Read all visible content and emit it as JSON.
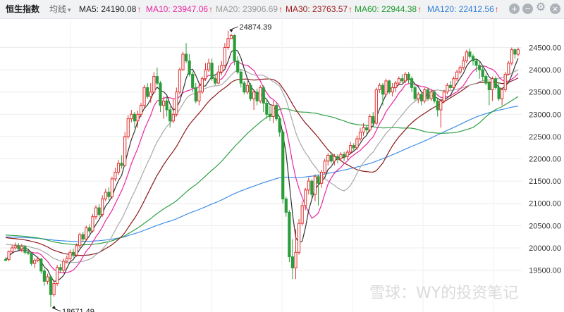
{
  "header": {
    "title": "恒生指数",
    "mode": "均线",
    "ma": [
      {
        "label": "MA5: 24190.08",
        "color": "#222222",
        "line": "#333333"
      },
      {
        "label": "MA10: 23947.06",
        "color": "#e8259e",
        "line": "#e8259e"
      },
      {
        "label": "MA20: 23906.69",
        "color": "#9a9a9a",
        "line": "#a8a8a8"
      },
      {
        "label": "MA30: 23763.57",
        "color": "#9b1b1b",
        "line": "#8b1a1a"
      },
      {
        "label": "MA60: 22944.38",
        "color": "#1f9a2d",
        "line": "#2ea043"
      },
      {
        "label": "MA120: 22412.56",
        "color": "#2f7fd6",
        "line": "#3f8ee6"
      }
    ],
    "arrow": "↑",
    "arrow_color": "#e03030"
  },
  "ma250_color": "#f0a81c",
  "watermark": "雪球：WY的投资笔记",
  "chart_data": {
    "type": "candlestick",
    "y_ticks": [
      19500,
      20000,
      20500,
      21000,
      21500,
      22000,
      22500,
      23000,
      23500,
      24000,
      24500
    ],
    "y_tick_labels": [
      "19500.00",
      "20000.00",
      "20500.00",
      "21000.00",
      "21500.00",
      "22000.00",
      "22500.00",
      "23000.00",
      "23500.00",
      "24000.00",
      "24500.00"
    ],
    "ylim": [
      18560,
      25140
    ],
    "grid": true,
    "up_color": "#e03030",
    "down_color": "#2a9d3a",
    "max_label": "24874.39",
    "min_label": "18671.49",
    "candles": [
      [
        19740,
        19720,
        19790,
        19700
      ],
      [
        19740,
        19920,
        19940,
        19700
      ],
      [
        19920,
        20000,
        20070,
        19880
      ],
      [
        20000,
        20050,
        20120,
        19960
      ],
      [
        20050,
        19980,
        20110,
        19920
      ],
      [
        19980,
        20030,
        20090,
        19900
      ],
      [
        20030,
        19900,
        20060,
        19850
      ],
      [
        19900,
        19880,
        19950,
        19840
      ],
      [
        19880,
        19650,
        19900,
        19600
      ],
      [
        19650,
        19720,
        19770,
        19550
      ],
      [
        19720,
        19750,
        19800,
        19680
      ],
      [
        19750,
        19480,
        19770,
        19420
      ],
      [
        19480,
        19250,
        19530,
        19150
      ],
      [
        19250,
        19350,
        19420,
        19180
      ],
      [
        19350,
        18950,
        19380,
        18671.49
      ],
      [
        18950,
        19200,
        19280,
        18900
      ],
      [
        19200,
        19560,
        19620,
        19150
      ],
      [
        19560,
        19500,
        19640,
        19440
      ],
      [
        19500,
        19700,
        19760,
        19450
      ],
      [
        19700,
        19760,
        19830,
        19650
      ],
      [
        19760,
        19900,
        19960,
        19720
      ],
      [
        19900,
        19840,
        19980,
        19780
      ],
      [
        19840,
        20050,
        20100,
        19800
      ],
      [
        20050,
        20300,
        20340,
        20000
      ],
      [
        20300,
        20200,
        20360,
        20130
      ],
      [
        20200,
        20450,
        20500,
        20150
      ],
      [
        20450,
        20380,
        20530,
        20320
      ],
      [
        20380,
        20700,
        20760,
        20340
      ],
      [
        20700,
        20900,
        20960,
        20640
      ],
      [
        20900,
        20750,
        20980,
        20700
      ],
      [
        20750,
        21100,
        21180,
        20700
      ],
      [
        21100,
        21250,
        21330,
        21050
      ],
      [
        21250,
        21150,
        21360,
        21080
      ],
      [
        21150,
        21550,
        21600,
        21100
      ],
      [
        21550,
        21700,
        21800,
        21500
      ],
      [
        21700,
        21900,
        21980,
        21640
      ],
      [
        21900,
        21850,
        22080,
        21780
      ],
      [
        21850,
        22500,
        22600,
        21830
      ],
      [
        22500,
        22900,
        22980,
        22450
      ],
      [
        22900,
        23000,
        23100,
        22820
      ],
      [
        23000,
        22850,
        23050,
        22700
      ],
      [
        22850,
        23000,
        23080,
        22700
      ],
      [
        23000,
        23200,
        23260,
        22940
      ],
      [
        23200,
        23600,
        23660,
        23150
      ],
      [
        23600,
        23400,
        23700,
        23350
      ],
      [
        23400,
        23500,
        23700,
        23260
      ],
      [
        23500,
        23850,
        23950,
        23460
      ],
      [
        23850,
        23700,
        24050,
        23650
      ],
      [
        23700,
        23200,
        23750,
        23050
      ],
      [
        23200,
        23300,
        23400,
        22900
      ],
      [
        23300,
        23100,
        23400,
        22950
      ],
      [
        23100,
        22850,
        23180,
        22700
      ],
      [
        22850,
        23000,
        23350,
        22800
      ],
      [
        23000,
        23500,
        23600,
        22950
      ],
      [
        23500,
        24000,
        24050,
        23450
      ],
      [
        24000,
        24350,
        24400,
        23980
      ],
      [
        24350,
        24200,
        24600,
        24150
      ],
      [
        24200,
        23900,
        24350,
        23850
      ],
      [
        23900,
        23600,
        23960,
        23500
      ],
      [
        23600,
        23300,
        23700,
        23250
      ],
      [
        23300,
        23500,
        23700,
        23200
      ],
      [
        23500,
        23800,
        23850,
        23460
      ],
      [
        23800,
        24000,
        24150,
        23750
      ],
      [
        24000,
        24150,
        24250,
        23950
      ],
      [
        24150,
        23800,
        24250,
        23750
      ],
      [
        23800,
        23700,
        23900,
        23650
      ],
      [
        23700,
        23950,
        24100,
        23680
      ],
      [
        23950,
        24100,
        24200,
        23880
      ],
      [
        24100,
        24500,
        24600,
        24050
      ],
      [
        24500,
        24700,
        24874.39,
        24450
      ],
      [
        24700,
        24770,
        24810,
        24720
      ],
      [
        24770,
        24200,
        24800,
        24100
      ],
      [
        24200,
        23950,
        24300,
        23900
      ],
      [
        23950,
        23700,
        24000,
        23600
      ],
      [
        23700,
        23500,
        23750,
        23450
      ],
      [
        23500,
        23650,
        23750,
        23450
      ],
      [
        23650,
        23350,
        23700,
        23300
      ],
      [
        23350,
        23500,
        23550,
        23100
      ],
      [
        23500,
        23300,
        23580,
        23200
      ],
      [
        23300,
        23600,
        23650,
        23250
      ],
      [
        23600,
        23250,
        23650,
        23050
      ],
      [
        23250,
        23000,
        23350,
        22900
      ],
      [
        23000,
        22950,
        23200,
        22850
      ],
      [
        22950,
        23200,
        23300,
        22800
      ],
      [
        23200,
        22900,
        23250,
        22850
      ],
      [
        22900,
        22600,
        22950,
        22500
      ],
      [
        22600,
        21100,
        22650,
        21000
      ],
      [
        21100,
        20800,
        21150,
        20700
      ],
      [
        20800,
        19800,
        20850,
        19680
      ],
      [
        19800,
        19550,
        20200,
        19300
      ],
      [
        19550,
        19900,
        20420,
        19300
      ],
      [
        19900,
        20550,
        20650,
        19850
      ],
      [
        20550,
        20950,
        21050,
        20500
      ],
      [
        20950,
        21300,
        21350,
        20850
      ],
      [
        21300,
        21500,
        21580,
        21200
      ],
      [
        21500,
        21200,
        21540,
        21100
      ],
      [
        21200,
        21600,
        21650,
        21050
      ],
      [
        21600,
        21450,
        21650,
        20950
      ],
      [
        21450,
        21700,
        21750,
        21350
      ],
      [
        21700,
        21950,
        22000,
        21650
      ],
      [
        21950,
        22080,
        22130,
        21850
      ],
      [
        22080,
        21950,
        22150,
        21900
      ],
      [
        21950,
        22050,
        22110,
        21850
      ],
      [
        22050,
        22000,
        22100,
        21900
      ],
      [
        22000,
        22100,
        22150,
        21950
      ],
      [
        22100,
        22050,
        22160,
        21950
      ],
      [
        22050,
        22150,
        22200,
        21980
      ],
      [
        22150,
        22300,
        22380,
        22100
      ],
      [
        22300,
        22250,
        22350,
        22180
      ],
      [
        22250,
        22450,
        22520,
        22200
      ],
      [
        22450,
        22600,
        22700,
        22400
      ],
      [
        22600,
        22700,
        22800,
        22520
      ],
      [
        22700,
        22650,
        22760,
        22560
      ],
      [
        22650,
        22950,
        23000,
        22600
      ],
      [
        22950,
        22800,
        23050,
        22750
      ],
      [
        22800,
        23550,
        23600,
        22750
      ],
      [
        23550,
        23650,
        23700,
        23480
      ],
      [
        23650,
        23450,
        23700,
        23200
      ],
      [
        23450,
        23750,
        23800,
        23400
      ],
      [
        23750,
        23500,
        23780,
        23450
      ],
      [
        23500,
        23600,
        23700,
        23400
      ],
      [
        23600,
        23700,
        23750,
        23500
      ],
      [
        23700,
        23800,
        23850,
        23650
      ],
      [
        23800,
        23750,
        23900,
        23700
      ],
      [
        23750,
        23900,
        23950,
        23700
      ],
      [
        23900,
        23800,
        23950,
        23700
      ],
      [
        23800,
        23600,
        23850,
        23500
      ],
      [
        23600,
        23350,
        23650,
        23300
      ],
      [
        23350,
        23450,
        23500,
        23250
      ],
      [
        23450,
        23300,
        23500,
        23200
      ],
      [
        23300,
        23550,
        23600,
        23250
      ],
      [
        23550,
        23350,
        23600,
        23300
      ],
      [
        23350,
        23500,
        23550,
        23300
      ],
      [
        23500,
        23300,
        23550,
        23250
      ],
      [
        23300,
        23100,
        23350,
        22950
      ],
      [
        23100,
        23300,
        23350,
        22700
      ],
      [
        23300,
        23500,
        23550,
        23250
      ],
      [
        23500,
        23650,
        23700,
        23450
      ],
      [
        23650,
        23600,
        23750,
        23550
      ],
      [
        23600,
        23800,
        23850,
        23580
      ],
      [
        23800,
        23950,
        24000,
        23750
      ],
      [
        23950,
        24050,
        24100,
        23900
      ],
      [
        24050,
        24200,
        24300,
        24000
      ],
      [
        24200,
        24400,
        24450,
        24150
      ],
      [
        24400,
        24300,
        24480,
        24250
      ],
      [
        24300,
        24200,
        24350,
        24100
      ],
      [
        24200,
        24100,
        24250,
        23950
      ],
      [
        24100,
        24000,
        24200,
        23800
      ],
      [
        24000,
        23850,
        24100,
        23750
      ],
      [
        23850,
        23700,
        23900,
        23650
      ],
      [
        23700,
        23550,
        23750,
        23200
      ],
      [
        23550,
        23800,
        23850,
        23300
      ],
      [
        23800,
        23600,
        23850,
        23550
      ],
      [
        23600,
        23350,
        23700,
        23300
      ],
      [
        23350,
        23550,
        23600,
        23200
      ],
      [
        23550,
        23900,
        23950,
        23500
      ],
      [
        23900,
        24150,
        24200,
        23880
      ],
      [
        24150,
        24450,
        24500,
        24100
      ],
      [
        24450,
        24350,
        24480,
        24250
      ],
      [
        24350,
        24450,
        24500,
        24300
      ]
    ]
  }
}
